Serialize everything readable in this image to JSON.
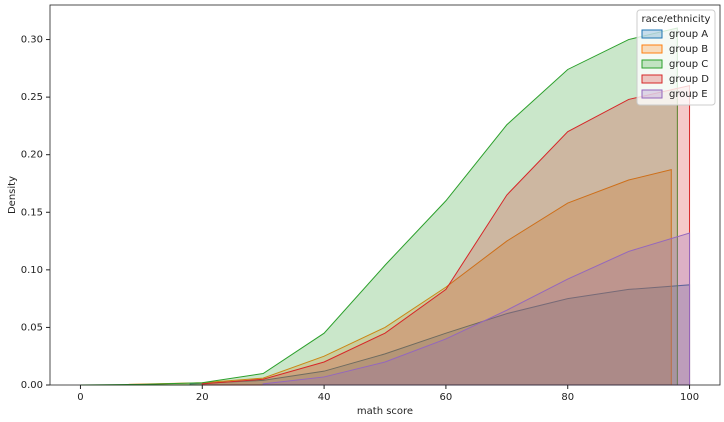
{
  "chart_data": {
    "type": "area",
    "xlabel": "math score",
    "ylabel": "Density",
    "xlim": [
      -5,
      105
    ],
    "ylim": [
      0,
      0.33
    ],
    "xticks": [
      0,
      20,
      40,
      60,
      80,
      100
    ],
    "yticks": [
      {
        "value": 0,
        "label": "0.00"
      },
      {
        "value": 0.05,
        "label": "0.05"
      },
      {
        "value": 0.1,
        "label": "0.10"
      },
      {
        "value": 0.15,
        "label": "0.15"
      },
      {
        "value": 0.2,
        "label": "0.20"
      },
      {
        "value": 0.25,
        "label": "0.25"
      },
      {
        "value": 0.3,
        "label": "0.30"
      }
    ],
    "legend_title": "race/ethnicity",
    "legend_position": "upper right",
    "fill_opacity": 0.25,
    "series": [
      {
        "name": "group A",
        "color": "#1f77b4",
        "x": [
          18,
          30,
          40,
          50,
          60,
          70,
          80,
          90,
          100
        ],
        "values": [
          0.001,
          0.004,
          0.012,
          0.027,
          0.045,
          0.062,
          0.075,
          0.083,
          0.087
        ]
      },
      {
        "name": "group B",
        "color": "#ff7f0e",
        "x": [
          8,
          20,
          30,
          40,
          50,
          60,
          70,
          80,
          90,
          97
        ],
        "values": [
          0.0005,
          0.002,
          0.006,
          0.025,
          0.05,
          0.085,
          0.125,
          0.158,
          0.178,
          0.187
        ]
      },
      {
        "name": "group C",
        "color": "#2ca02c",
        "x": [
          0,
          10,
          20,
          30,
          40,
          50,
          60,
          70,
          80,
          90,
          98
        ],
        "values": [
          0,
          0.0005,
          0.002,
          0.01,
          0.045,
          0.104,
          0.16,
          0.226,
          0.274,
          0.3,
          0.31
        ]
      },
      {
        "name": "group D",
        "color": "#d62728",
        "x": [
          20,
          30,
          40,
          50,
          60,
          70,
          80,
          90,
          100
        ],
        "values": [
          0.001,
          0.005,
          0.02,
          0.045,
          0.083,
          0.165,
          0.22,
          0.248,
          0.26
        ]
      },
      {
        "name": "group E",
        "color": "#9467bd",
        "x": [
          30,
          40,
          50,
          60,
          70,
          80,
          90,
          100
        ],
        "values": [
          0.001,
          0.007,
          0.02,
          0.04,
          0.065,
          0.092,
          0.116,
          0.132
        ]
      }
    ]
  }
}
